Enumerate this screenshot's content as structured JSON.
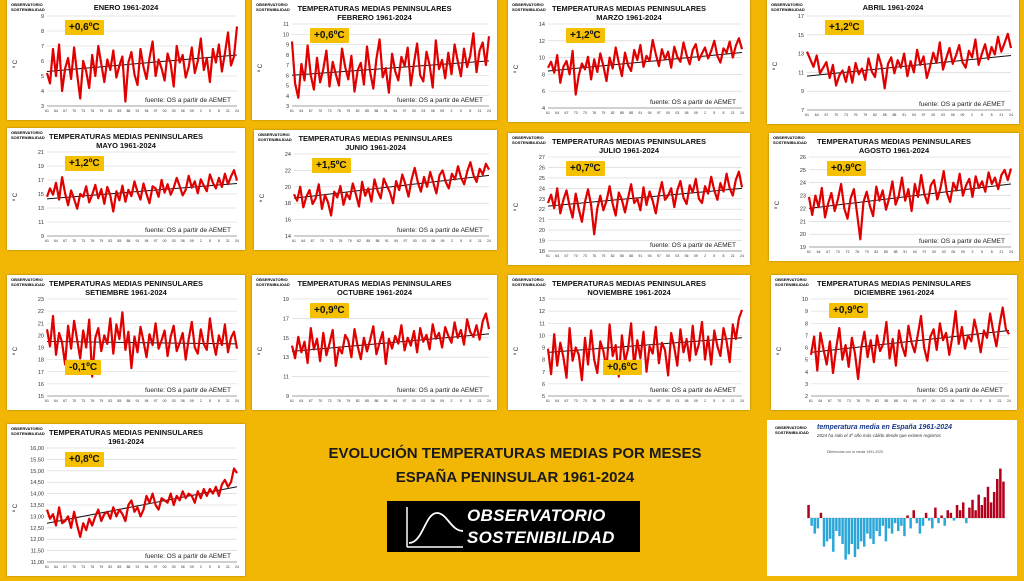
{
  "source_text": "fuente: OS a partir de AEMET",
  "y_unit": "º C",
  "logo_lines": [
    "OBSERVATORIO",
    "SOSTENIBILIDAD"
  ],
  "main_title_line1": "EVOLUCIÓN TEMPERATURAS MEDIAS POR MESES",
  "main_title_line2": "ESPAÑA PENINSULAR 1961-2024",
  "brand_line1": "OBSERVATORIO",
  "brand_line2": "SOSTENIBILIDAD",
  "colors": {
    "background": "#f2b705",
    "series": "#e00000",
    "trend": "#111111",
    "badge": "#f5c000",
    "bar_warm": "#b3001b",
    "bar_cool": "#2aa7d8"
  },
  "chart_data": [
    {
      "type": "line",
      "title_line1": "",
      "title_line2": "ENERO 1961-2024",
      "badge": "+0,6ºC",
      "y_ticks": [
        "9",
        "8",
        "7",
        "6",
        "5",
        "4",
        "3"
      ],
      "ylim": [
        3,
        9
      ],
      "trend": [
        5.3,
        6.4
      ],
      "values": [
        5.2,
        4.5,
        6.8,
        5.0,
        7.1,
        4.0,
        5.5,
        6.2,
        4.8,
        6.9,
        5.1,
        3.5,
        6.0,
        5.3,
        4.2,
        6.4,
        5.0,
        7.0,
        5.8,
        4.6,
        6.1,
        5.4,
        6.7,
        4.9,
        5.7,
        6.3,
        3.3,
        5.9,
        6.6,
        5.1,
        4.4,
        6.8,
        5.6,
        4.8,
        6.2,
        7.3,
        5.0,
        6.1,
        5.5,
        4.7,
        6.5,
        5.8,
        4.3,
        7.0,
        5.9,
        6.4,
        4.9,
        5.6,
        6.9,
        5.2,
        6.0,
        7.5,
        5.4,
        6.2,
        4.6,
        6.8,
        5.9,
        7.1,
        5.3,
        6.5,
        7.9,
        5.7,
        6.3,
        8.3
      ]
    },
    {
      "type": "line",
      "title_line1": "TEMPERATURAS MEDIAS PENINSULARES",
      "title_line2": "FEBRERO 1961-2024",
      "badge": "+0,6ºC",
      "y_ticks": [
        "11",
        "10",
        "9",
        "8",
        "7",
        "6",
        "5",
        "4",
        "3"
      ],
      "ylim": [
        3,
        11
      ],
      "trend": [
        6.0,
        7.4
      ],
      "values": [
        9.3,
        5.2,
        3.8,
        7.1,
        5.5,
        8.9,
        6.0,
        4.6,
        7.7,
        5.3,
        6.6,
        8.4,
        4.9,
        7.3,
        6.1,
        5.0,
        8.6,
        6.8,
        5.6,
        7.9,
        4.4,
        6.5,
        7.2,
        5.1,
        8.8,
        6.3,
        4.7,
        7.6,
        9.5,
        5.8,
        6.7,
        4.3,
        8.1,
        6.4,
        5.5,
        7.8,
        6.9,
        8.7,
        5.0,
        7.2,
        9.1,
        6.0,
        5.4,
        8.3,
        7.0,
        4.8,
        9.4,
        6.6,
        7.5,
        5.7,
        8.2,
        6.1,
        9.0,
        7.4,
        5.9,
        8.6,
        6.8,
        7.9,
        10.1,
        6.3,
        8.4,
        9.2,
        7.0,
        9.8
      ]
    },
    {
      "type": "line",
      "title_line1": "TEMPERATURAS MEDIAS PENINSULARES",
      "title_line2": "MARZO 1961-2024",
      "badge": "+1,2ºC",
      "y_ticks": [
        "14",
        "12",
        "10",
        "8",
        "6",
        "4"
      ],
      "ylim": [
        4,
        14
      ],
      "trend": [
        8.4,
        10.6
      ],
      "values": [
        8.8,
        9.5,
        8.2,
        10.3,
        7.0,
        8.9,
        9.6,
        8.0,
        10.8,
        5.6,
        7.9,
        9.3,
        8.6,
        10.1,
        7.4,
        9.8,
        8.3,
        10.5,
        9.0,
        7.2,
        10.0,
        8.7,
        11.2,
        9.4,
        7.8,
        10.6,
        9.1,
        8.4,
        10.9,
        9.7,
        11.5,
        8.9,
        10.2,
        9.6,
        12.1,
        10.4,
        9.0,
        11.0,
        9.8,
        10.7,
        8.8,
        11.3,
        10.1,
        9.5,
        11.8,
        10.3,
        9.2,
        10.9,
        11.6,
        9.7,
        10.5,
        11.2,
        9.9,
        10.8,
        12.0,
        10.2,
        9.4,
        11.1,
        10.6,
        11.9,
        10.0,
        11.4,
        12.3,
        11.0
      ]
    },
    {
      "type": "line",
      "title_line1": "",
      "title_line2": "ABRIL 1961-2024",
      "badge": "+1,2ºC",
      "y_ticks": [
        "17",
        "15",
        "13",
        "11",
        "9",
        "7"
      ],
      "ylim": [
        7,
        17
      ],
      "trend": [
        10.6,
        12.8
      ],
      "values": [
        13.2,
        12.4,
        11.6,
        12.8,
        10.9,
        11.5,
        12.1,
        10.4,
        11.8,
        9.6,
        10.7,
        11.2,
        10.0,
        11.6,
        9.9,
        12.0,
        10.8,
        11.4,
        10.2,
        12.5,
        11.1,
        10.5,
        12.9,
        11.7,
        9.3,
        11.9,
        12.6,
        10.9,
        12.3,
        11.5,
        13.0,
        10.6,
        12.2,
        11.0,
        13.4,
        11.8,
        12.7,
        10.4,
        11.6,
        13.1,
        12.0,
        14.2,
        11.3,
        12.5,
        13.6,
        11.9,
        12.8,
        13.9,
        12.1,
        11.5,
        13.3,
        12.6,
        14.5,
        11.8,
        13.0,
        14.0,
        12.4,
        13.7,
        12.9,
        14.8,
        13.2,
        14.1,
        15.1,
        13.6
      ]
    },
    {
      "type": "line",
      "title_line1": "TEMPERATURAS MEDIAS PENINSULARES",
      "title_line2": "MAYO 1961-2024",
      "badge": "+1,2ºC",
      "y_ticks": [
        "21",
        "19",
        "17",
        "15",
        "13",
        "11",
        "9"
      ],
      "ylim": [
        9,
        21
      ],
      "trend": [
        14.3,
        16.5
      ],
      "values": [
        14.6,
        15.8,
        14.9,
        16.6,
        14.2,
        17.4,
        15.1,
        13.4,
        15.5,
        14.3,
        12.9,
        15.0,
        14.6,
        16.1,
        13.8,
        14.9,
        16.3,
        14.4,
        15.7,
        13.6,
        16.0,
        14.8,
        12.5,
        15.4,
        14.1,
        16.2,
        13.9,
        15.6,
        14.7,
        16.8,
        15.3,
        14.2,
        16.5,
        15.0,
        13.7,
        16.1,
        15.8,
        14.6,
        17.0,
        15.2,
        16.4,
        14.9,
        15.9,
        17.3,
        16.1,
        14.8,
        15.6,
        17.6,
        15.9,
        16.8,
        15.1,
        17.1,
        16.2,
        15.4,
        17.8,
        16.6,
        15.8,
        17.3,
        16.0,
        17.9,
        16.4,
        17.5,
        18.4,
        16.9
      ]
    },
    {
      "type": "line",
      "title_line1": "TEMPERATURAS MEDIAS PENINSULARES",
      "title_line2": "JUNIO 1961-2024",
      "badge": "+1,5ºC",
      "y_ticks": [
        "24",
        "22",
        "20",
        "18",
        "16",
        "14"
      ],
      "ylim": [
        14,
        24
      ],
      "trend": [
        18.6,
        21.4
      ],
      "values": [
        19.1,
        18.3,
        20.0,
        17.5,
        18.8,
        19.6,
        17.9,
        18.6,
        20.3,
        17.3,
        19.0,
        18.1,
        16.5,
        19.4,
        18.7,
        20.1,
        17.8,
        19.2,
        18.5,
        20.4,
        19.1,
        17.6,
        20.6,
        18.9,
        19.8,
        18.2,
        20.9,
        19.5,
        18.6,
        21.0,
        20.1,
        19.3,
        18.0,
        20.7,
        19.6,
        21.5,
        20.3,
        18.8,
        20.9,
        22.3,
        20.6,
        19.4,
        21.2,
        20.0,
        21.8,
        20.5,
        19.2,
        21.4,
        22.0,
        20.6,
        19.8,
        21.6,
        20.9,
        22.5,
        21.1,
        20.3,
        21.9,
        23.0,
        21.4,
        20.6,
        22.2,
        21.5,
        22.8,
        22.1
      ]
    },
    {
      "type": "line",
      "title_line1": "TEMPERATURAS MEDIAS PENINSULARES",
      "title_line2": "JULIO 1961-2024",
      "badge": "+0,7ºC",
      "y_ticks": [
        "27",
        "26",
        "25",
        "24",
        "23",
        "22",
        "21",
        "20",
        "19",
        "18"
      ],
      "ylim": [
        18,
        27
      ],
      "trend": [
        22.3,
        24.0
      ],
      "values": [
        22.6,
        23.4,
        22.1,
        24.0,
        21.6,
        22.9,
        23.8,
        22.3,
        21.2,
        23.5,
        22.0,
        20.8,
        22.7,
        23.9,
        22.4,
        19.6,
        22.1,
        23.3,
        21.9,
        22.8,
        24.2,
        22.5,
        21.4,
        23.6,
        22.9,
        21.7,
        23.1,
        24.4,
        22.6,
        23.0,
        21.9,
        24.1,
        22.4,
        23.7,
        22.8,
        21.6,
        23.4,
        24.6,
        22.9,
        23.3,
        24.0,
        22.2,
        23.8,
        24.7,
        23.1,
        22.5,
        24.3,
        23.6,
        24.9,
        23.0,
        22.6,
        24.2,
        23.5,
        25.1,
        23.8,
        22.9,
        24.5,
        23.7,
        25.4,
        24.0,
        23.3,
        24.8,
        25.6,
        24.1
      ]
    },
    {
      "type": "line",
      "title_line1": "TEMPERATURAS MEDIAS PENINSULARES",
      "title_line2": "AGOSTO 1961-2024",
      "badge": "+0,9ºC",
      "y_ticks": [
        "26",
        "25",
        "24",
        "23",
        "22",
        "21",
        "20",
        "19"
      ],
      "ylim": [
        19,
        26
      ],
      "trend": [
        22.0,
        23.9
      ],
      "values": [
        22.9,
        21.5,
        23.0,
        22.1,
        23.6,
        21.3,
        22.4,
        23.2,
        21.8,
        22.7,
        23.9,
        22.0,
        21.2,
        22.8,
        23.5,
        21.6,
        19.6,
        22.5,
        23.3,
        22.2,
        21.4,
        23.7,
        22.6,
        23.4,
        21.9,
        22.8,
        24.1,
        22.3,
        23.0,
        24.4,
        22.6,
        23.5,
        21.8,
        23.9,
        22.9,
        24.6,
        23.1,
        22.4,
        23.8,
        24.2,
        22.7,
        23.6,
        24.9,
        23.2,
        22.5,
        24.0,
        23.4,
        24.7,
        23.0,
        23.8,
        24.3,
        22.9,
        24.5,
        23.6,
        24.1,
        23.3,
        24.8,
        23.9,
        24.4,
        23.5,
        24.6,
        25.0,
        24.2,
        25.1
      ]
    },
    {
      "type": "line",
      "title_line1": "TEMPERATURAS MEDIAS PENINSULARES",
      "title_line2": "SETIEMBRE 1961-2024",
      "badge": "-0,1ºC",
      "y_ticks": [
        "23",
        "22",
        "21",
        "20",
        "19",
        "18",
        "17",
        "16",
        "15"
      ],
      "ylim": [
        15,
        23
      ],
      "trend": [
        19.5,
        19.3
      ],
      "values": [
        20.5,
        19.1,
        21.6,
        18.4,
        20.2,
        19.4,
        17.6,
        20.8,
        18.9,
        21.2,
        19.6,
        18.1,
        20.4,
        19.0,
        21.3,
        16.6,
        19.8,
        20.6,
        18.7,
        20.0,
        19.3,
        21.4,
        18.5,
        20.9,
        19.7,
        21.9,
        18.8,
        20.3,
        17.3,
        19.9,
        18.6,
        20.7,
        19.5,
        18.2,
        20.1,
        19.2,
        21.0,
        18.9,
        19.6,
        20.4,
        18.3,
        19.9,
        20.8,
        18.7,
        19.4,
        20.2,
        18.0,
        19.7,
        21.1,
        19.0,
        18.5,
        20.5,
        19.3,
        18.8,
        21.4,
        19.6,
        18.4,
        20.0,
        19.2,
        20.9,
        18.6,
        19.8,
        20.3,
        18.9
      ]
    },
    {
      "type": "line",
      "title_line1": "TEMPERATURAS MEDIAS PENINSULARES",
      "title_line2": "OCTUBRE 1961-2024",
      "badge": "+0,9ºC",
      "y_ticks": [
        "19",
        "17",
        "15",
        "13",
        "11",
        "9"
      ],
      "ylim": [
        9,
        19
      ],
      "trend": [
        13.6,
        15.4
      ],
      "values": [
        14.2,
        12.9,
        15.1,
        13.5,
        14.6,
        12.4,
        16.0,
        13.8,
        14.9,
        12.6,
        15.5,
        13.2,
        14.4,
        15.8,
        12.1,
        14.0,
        13.4,
        15.3,
        14.7,
        13.0,
        15.9,
        14.1,
        12.8,
        15.0,
        13.6,
        14.8,
        16.2,
        13.3,
        14.5,
        15.6,
        12.3,
        14.9,
        13.9,
        15.2,
        14.4,
        16.3,
        13.7,
        15.0,
        14.2,
        15.7,
        13.5,
        16.0,
        14.6,
        15.3,
        13.8,
        16.4,
        14.9,
        15.5,
        14.0,
        16.1,
        15.2,
        14.5,
        16.6,
        15.0,
        15.8,
        14.3,
        16.9,
        15.6,
        15.1,
        16.3,
        14.8,
        16.7,
        17.5,
        15.9
      ]
    },
    {
      "type": "line",
      "title_line1": "TEMPERATURAS MEDIAS PENINSULARES",
      "title_line2": "NOVIEMBRE 1961-2024",
      "badge": "+0,6ºC",
      "y_ticks": [
        "13",
        "12",
        "11",
        "10",
        "9",
        "8",
        "7",
        "6",
        "5"
      ],
      "ylim": [
        5,
        13
      ],
      "trend": [
        8.6,
        9.8
      ],
      "values": [
        8.9,
        6.8,
        10.1,
        7.5,
        9.4,
        8.2,
        6.5,
        10.6,
        7.9,
        9.0,
        8.4,
        6.3,
        9.8,
        7.6,
        10.4,
        8.0,
        6.9,
        9.5,
        8.7,
        7.2,
        10.9,
        8.3,
        9.2,
        6.6,
        10.0,
        7.8,
        8.9,
        11.0,
        7.4,
        9.6,
        8.1,
        10.3,
        7.0,
        9.1,
        8.5,
        10.7,
        7.7,
        9.4,
        8.8,
        6.7,
        10.2,
        9.0,
        7.5,
        10.5,
        8.6,
        9.7,
        7.9,
        10.8,
        8.4,
        9.3,
        11.1,
        8.0,
        9.9,
        7.6,
        10.4,
        9.1,
        8.3,
        10.6,
        9.5,
        7.8,
        10.9,
        9.7,
        11.4,
        12.1
      ]
    },
    {
      "type": "line",
      "title_line1": "TEMPERATURAS MEDIAS PENINSULARES",
      "title_line2": "DICIEMBRE 1961-2024",
      "badge": "+0,9ºC",
      "y_ticks": [
        "10",
        "9",
        "8",
        "7",
        "6",
        "5",
        "4",
        "3",
        "2"
      ],
      "ylim": [
        2,
        10
      ],
      "trend": [
        5.6,
        7.4
      ],
      "values": [
        5.4,
        6.9,
        4.1,
        7.2,
        5.8,
        4.6,
        6.5,
        3.9,
        5.9,
        7.6,
        5.0,
        6.2,
        4.4,
        6.8,
        5.5,
        3.4,
        6.0,
        7.3,
        5.2,
        6.6,
        4.8,
        7.0,
        5.7,
        6.3,
        8.1,
        5.1,
        6.7,
        4.5,
        7.4,
        6.1,
        5.3,
        7.8,
        6.4,
        5.6,
        7.1,
        8.6,
        6.0,
        4.9,
        6.9,
        7.5,
        5.8,
        8.0,
        6.6,
        7.2,
        5.4,
        6.9,
        9.0,
        6.3,
        7.7,
        5.9,
        7.0,
        6.5,
        8.3,
        7.1,
        5.6,
        7.4,
        6.8,
        8.8,
        7.3,
        6.1,
        7.9,
        9.3,
        7.5,
        7.1
      ]
    },
    {
      "type": "line",
      "title_line1": "TEMPERATURAS MEDIAS PENINSULARES",
      "title_line2": "1961-2024",
      "badge": "+0,8ºC",
      "y_ticks": [
        "16,00",
        "15,50",
        "15,00",
        "14,50",
        "14,00",
        "13,50",
        "13,00",
        "12,50",
        "12,00",
        "11,50",
        "11,00"
      ],
      "ylim": [
        11,
        16
      ],
      "trend": [
        12.7,
        14.3
      ],
      "values": [
        13.3,
        12.9,
        13.1,
        12.6,
        13.4,
        12.7,
        12.8,
        13.0,
        12.5,
        13.2,
        12.6,
        12.1,
        12.7,
        12.4,
        12.9,
        12.6,
        13.0,
        13.3,
        12.8,
        13.1,
        13.2,
        12.9,
        13.4,
        13.0,
        13.3,
        13.1,
        12.8,
        13.5,
        13.7,
        13.2,
        13.4,
        13.0,
        13.3,
        13.9,
        13.6,
        14.0,
        13.5,
        13.3,
        13.8,
        13.7,
        13.6,
        14.0,
        13.5,
        13.9,
        13.7,
        14.1,
        13.8,
        14.0,
        13.9,
        13.6,
        14.1,
        13.8,
        14.2,
        13.9,
        14.2,
        14.0,
        14.3,
        13.9,
        14.4,
        14.6,
        14.3,
        14.5,
        15.1,
        14.9
      ]
    }
  ],
  "mini_chart": {
    "type": "bar",
    "title": "temperatura media en España 1961-2024",
    "subtitle": "2024 ha sido el 3º año más cálido desde que existen registros",
    "note": "Diferencias con la media 1991-2020",
    "values": [
      0.5,
      -0.3,
      -0.6,
      -0.4,
      0.2,
      -1.1,
      -0.9,
      -0.8,
      -1.3,
      -0.5,
      -0.7,
      -1.0,
      -1.6,
      -1.4,
      -1.0,
      -1.5,
      -1.2,
      -0.9,
      -1.1,
      -0.6,
      -0.8,
      -1.0,
      -0.5,
      -0.7,
      -0.3,
      -0.9,
      -0.4,
      -0.6,
      -0.2,
      -0.5,
      -0.3,
      -0.7,
      0.1,
      -0.4,
      0.3,
      -0.2,
      -0.6,
      -0.3,
      0.2,
      -0.1,
      -0.4,
      0.4,
      -0.2,
      0.1,
      -0.3,
      0.3,
      0.2,
      -0.1,
      0.5,
      0.3,
      0.6,
      -0.2,
      0.4,
      0.7,
      0.3,
      0.9,
      0.5,
      0.8,
      1.2,
      0.6,
      1.0,
      1.5,
      1.9,
      1.4
    ]
  }
}
